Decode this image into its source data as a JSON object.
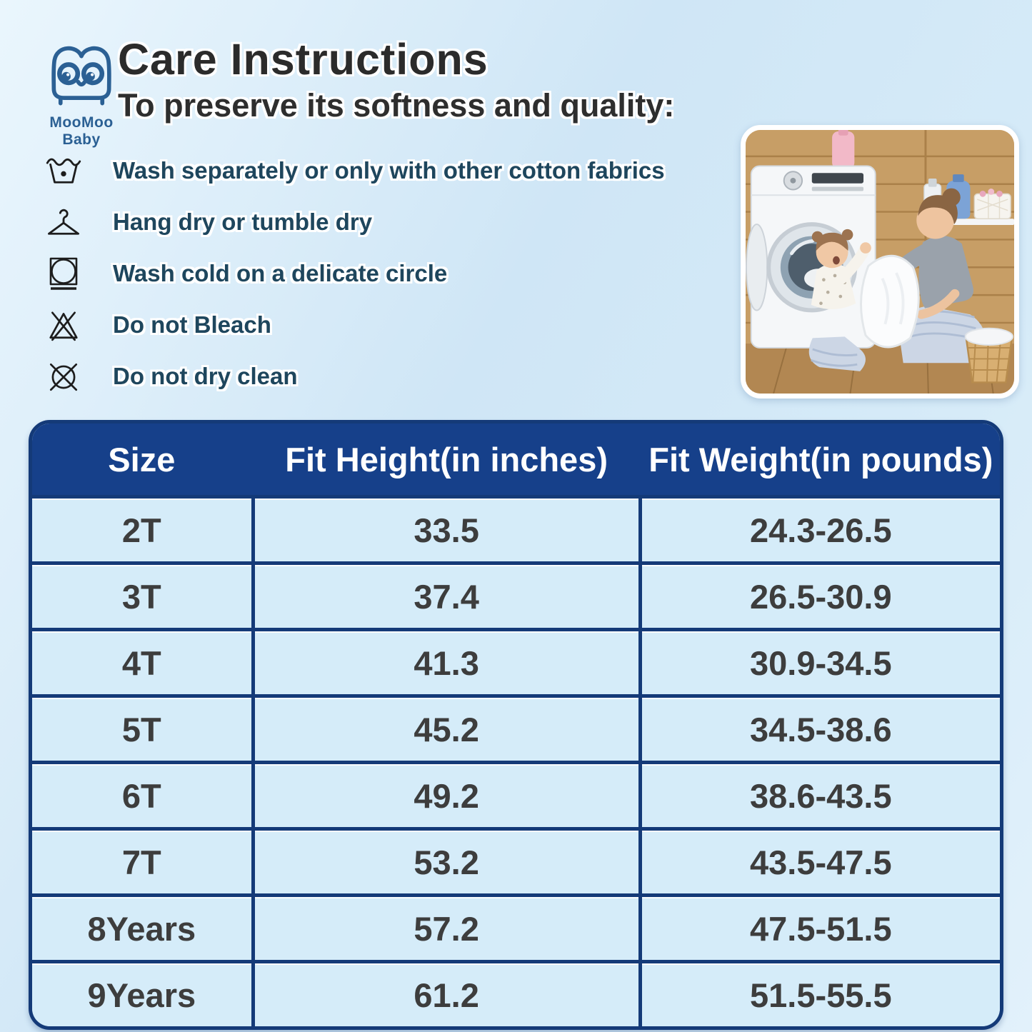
{
  "brand": {
    "name": "MooMoo Baby"
  },
  "header": {
    "title": "Care Instructions",
    "subtitle": "To preserve its softness and quality:"
  },
  "care_instructions": [
    {
      "icon": "washtub-one-dot-icon",
      "text": "Wash separately or only with other cotton fabrics"
    },
    {
      "icon": "hanger-icon",
      "text": "Hang dry or tumble dry"
    },
    {
      "icon": "tumble-dry-delicate-icon",
      "text": "Wash cold on a delicate circle"
    },
    {
      "icon": "do-not-bleach-icon",
      "text": "Do not Bleach"
    },
    {
      "icon": "do-not-dry-clean-icon",
      "text": "Do not dry clean"
    }
  ],
  "photo": {
    "description": "Mother and child taking white laundry out of a washing machine in a wooden laundry room"
  },
  "size_chart": {
    "columns": [
      "Size",
      "Fit Height(in inches)",
      "Fit Weight(in pounds)"
    ],
    "rows": [
      [
        "2T",
        "33.5",
        "24.3-26.5"
      ],
      [
        "3T",
        "37.4",
        "26.5-30.9"
      ],
      [
        "4T",
        "41.3",
        "30.9-34.5"
      ],
      [
        "5T",
        "45.2",
        "34.5-38.6"
      ],
      [
        "6T",
        "49.2",
        "38.6-43.5"
      ],
      [
        "7T",
        "53.2",
        "43.5-47.5"
      ],
      [
        "8Years",
        "57.2",
        "47.5-51.5"
      ],
      [
        "9Years",
        "61.2",
        "51.5-55.5"
      ]
    ]
  },
  "colors": {
    "table_header_bg": "#16408a",
    "table_border": "#143a78",
    "table_cell_bg": "#d5ecf9",
    "care_text": "#1e465d",
    "logo_blue": "#2b6094",
    "background_light": "#e0f0fa"
  }
}
